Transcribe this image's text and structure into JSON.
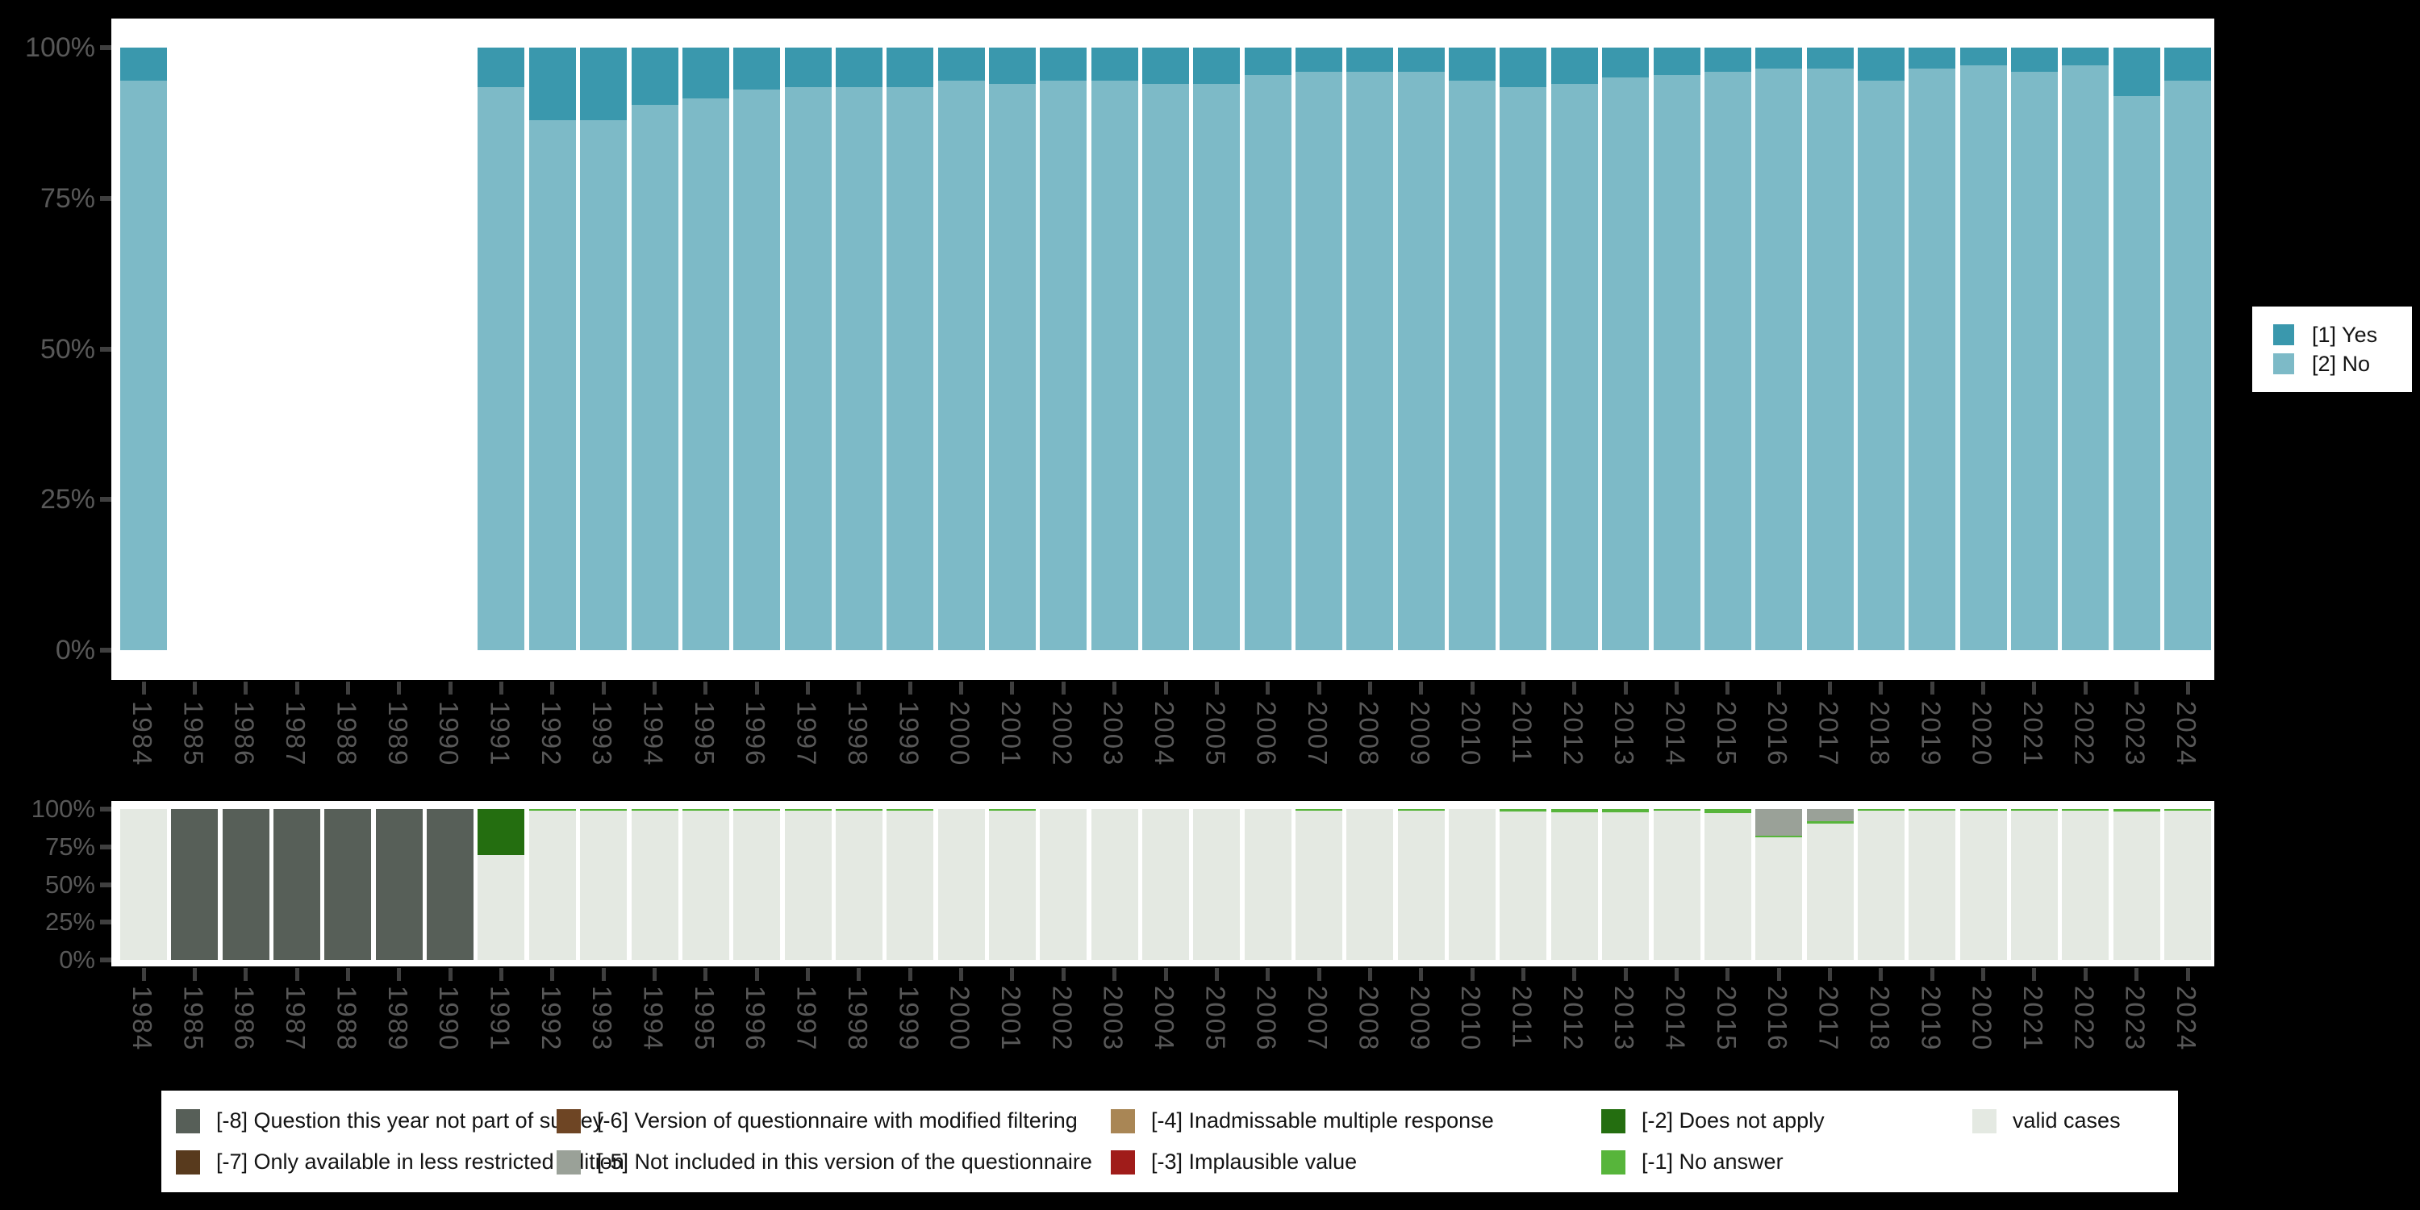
{
  "background_color": "#000000",
  "plot_background_color": "#ffffff",
  "axis_label_color": "#585858",
  "chart_data": [
    {
      "id": "response-distribution",
      "type": "bar",
      "stacked": true,
      "unit": "percent",
      "orientation": "vertical",
      "title": "",
      "xlabel": "",
      "ylabel": "",
      "ylim": [
        0,
        100
      ],
      "grid": false,
      "legend_position": "right",
      "yticks": [
        "100%",
        "75%",
        "50%",
        "25%",
        "0%"
      ],
      "categories": [
        "1984",
        "1985",
        "1986",
        "1987",
        "1988",
        "1989",
        "1990",
        "1991",
        "1992",
        "1993",
        "1994",
        "1995",
        "1996",
        "1997",
        "1998",
        "1999",
        "2000",
        "2001",
        "2002",
        "2003",
        "2004",
        "2005",
        "2006",
        "2007",
        "2008",
        "2009",
        "2010",
        "2011",
        "2012",
        "2013",
        "2014",
        "2015",
        "2016",
        "2017",
        "2018",
        "2019",
        "2020",
        "2021",
        "2022",
        "2023",
        "2024"
      ],
      "series": [
        {
          "name": "[1] Yes",
          "color": "#3a98ad",
          "values": [
            5.5,
            null,
            null,
            null,
            null,
            null,
            null,
            6.5,
            12,
            12,
            9.5,
            8.5,
            7,
            6.5,
            6.5,
            6.5,
            5.5,
            6,
            5.5,
            5.5,
            6,
            6,
            4.5,
            4,
            4,
            4,
            5.5,
            6.5,
            6,
            5,
            4.5,
            4,
            3.5,
            3.5,
            5.5,
            3.5,
            3,
            4,
            3,
            8,
            5.5
          ]
        },
        {
          "name": "[2] No",
          "color": "#7dbac7",
          "values": [
            94.5,
            null,
            null,
            null,
            null,
            null,
            null,
            93.5,
            88,
            88,
            90.5,
            91.5,
            93,
            93.5,
            93.5,
            93.5,
            94.5,
            94,
            94.5,
            94.5,
            94,
            94,
            95.5,
            96,
            96,
            96,
            94.5,
            93.5,
            94,
            95,
            95.5,
            96,
            96.5,
            96.5,
            94.5,
            96.5,
            97,
            96,
            97,
            92,
            94.5
          ]
        }
      ]
    },
    {
      "id": "missing-values",
      "type": "bar",
      "stacked": true,
      "unit": "percent",
      "orientation": "vertical",
      "title": "",
      "xlabel": "",
      "ylabel": "",
      "ylim": [
        0,
        100
      ],
      "grid": false,
      "legend_position": "bottom",
      "yticks": [
        "100%",
        "75%",
        "50%",
        "25%",
        "0%"
      ],
      "categories": [
        "1984",
        "1985",
        "1986",
        "1987",
        "1988",
        "1989",
        "1990",
        "1991",
        "1992",
        "1993",
        "1994",
        "1995",
        "1996",
        "1997",
        "1998",
        "1999",
        "2000",
        "2001",
        "2002",
        "2003",
        "2004",
        "2005",
        "2006",
        "2007",
        "2008",
        "2009",
        "2010",
        "2011",
        "2012",
        "2013",
        "2014",
        "2015",
        "2016",
        "2017",
        "2018",
        "2019",
        "2020",
        "2021",
        "2022",
        "2023",
        "2024"
      ],
      "series": [
        {
          "name": "[-8] Question this year not part of survey",
          "color": "#575f58",
          "values": [
            0,
            100,
            100,
            100,
            100,
            100,
            100,
            0,
            0,
            0,
            0,
            0,
            0,
            0,
            0,
            0,
            0,
            0,
            0,
            0,
            0,
            0,
            0,
            0,
            0,
            0,
            0,
            0,
            0,
            0,
            0,
            0,
            0,
            0,
            0,
            0,
            0,
            0,
            0,
            0,
            0
          ]
        },
        {
          "name": "[-5] Not included in this version of the questionnaire",
          "color": "#9aa198",
          "values": [
            0,
            0,
            0,
            0,
            0,
            0,
            0,
            0,
            0,
            0,
            0,
            0,
            0,
            0,
            0,
            0,
            0,
            0,
            0,
            0,
            0,
            0,
            0,
            0,
            0,
            0,
            0,
            0,
            0,
            0,
            0,
            0,
            17.5,
            8,
            0,
            0,
            0,
            0,
            0,
            0,
            0
          ]
        },
        {
          "name": "[-2] Does not apply",
          "color": "#246e10",
          "values": [
            0,
            0,
            0,
            0,
            0,
            0,
            0,
            30.5,
            0,
            0,
            0,
            0,
            0,
            0,
            0,
            0,
            0,
            0,
            0,
            0,
            0,
            0,
            0,
            0,
            0,
            0,
            0,
            0,
            0,
            0,
            0,
            0,
            0,
            0,
            0,
            0,
            0,
            0,
            0,
            0,
            0
          ]
        },
        {
          "name": "[-1] No answer",
          "color": "#57b53b",
          "values": [
            0,
            0,
            0,
            0,
            0,
            0,
            0,
            0,
            0.4,
            0.4,
            0.6,
            0.6,
            0.6,
            0.6,
            0.6,
            0.4,
            0,
            0.6,
            0,
            0,
            0,
            0,
            0,
            0.4,
            0,
            0.4,
            0,
            1.5,
            2.2,
            2.2,
            1.2,
            2.5,
            1.2,
            1.5,
            1.2,
            0.5,
            1,
            1,
            1.3,
            1.8,
            1
          ]
        },
        {
          "name": "valid cases",
          "color": "#e4e9e2",
          "values": [
            100,
            0,
            0,
            0,
            0,
            0,
            0,
            69.5,
            99.6,
            99.6,
            99.4,
            99.4,
            99.4,
            99.4,
            99.4,
            99.6,
            100,
            99.4,
            100,
            100,
            100,
            100,
            100,
            99.6,
            100,
            99.6,
            100,
            98.5,
            97.8,
            97.8,
            98.8,
            97.5,
            81.3,
            90.5,
            98.8,
            99.5,
            99,
            99,
            98.7,
            98.2,
            99
          ]
        }
      ]
    }
  ],
  "legend_top": {
    "items": [
      {
        "label": "[1] Yes",
        "color": "#3a98ad"
      },
      {
        "label": "[2] No",
        "color": "#7dbac7"
      }
    ]
  },
  "legend_bottom": {
    "items": [
      {
        "label": "[-8] Question this year not part of survey",
        "color": "#575f58"
      },
      {
        "label": "[-7] Only available in less restricted edition",
        "color": "#583a1d"
      },
      {
        "label": "[-6] Version of questionnaire with modified filtering",
        "color": "#6e4524"
      },
      {
        "label": "[-5] Not included in this version of the questionnaire",
        "color": "#9aa198"
      },
      {
        "label": "[-4] Inadmissable multiple response",
        "color": "#a98655"
      },
      {
        "label": "[-3] Implausible value",
        "color": "#a01c1a"
      },
      {
        "label": "[-2] Does not apply",
        "color": "#246e10"
      },
      {
        "label": "[-1] No answer",
        "color": "#57b53b"
      },
      {
        "label": "valid cases",
        "color": "#e4e9e2"
      }
    ]
  }
}
